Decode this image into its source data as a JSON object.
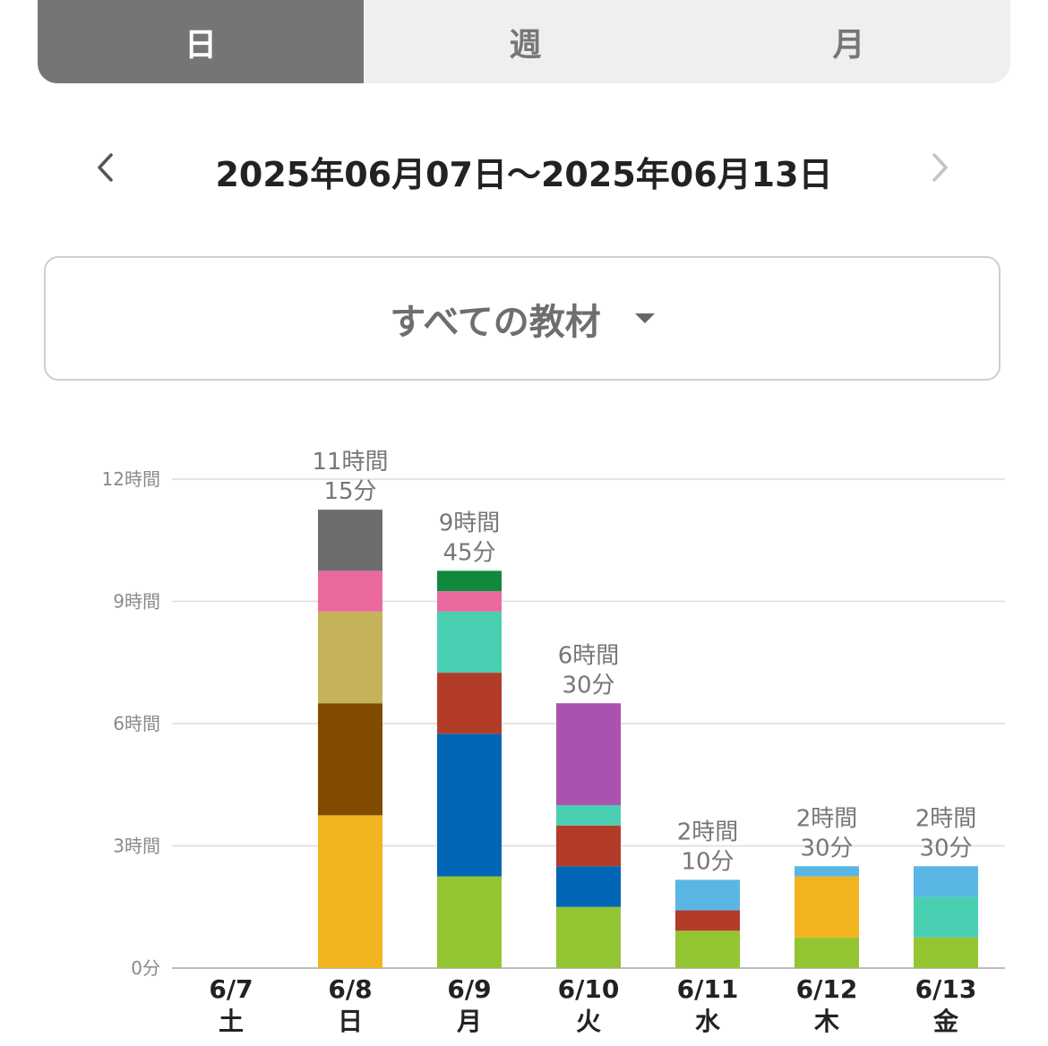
{
  "tabs": [
    {
      "label": "日",
      "active": true
    },
    {
      "label": "週",
      "active": false
    },
    {
      "label": "月",
      "active": false
    }
  ],
  "date_nav": {
    "range": "2025年06月07日〜2025年06月13日",
    "prev_icon": "chevron-left-icon",
    "next_icon": "chevron-right-icon"
  },
  "material_select": {
    "label": "すべての教材",
    "icon": "caret-down-icon"
  },
  "chart_data": {
    "type": "bar",
    "stacked": true,
    "unit": "minutes",
    "ylim": [
      0,
      720
    ],
    "yticks": [
      {
        "value": 0,
        "label": "0分"
      },
      {
        "value": 180,
        "label": "3時間"
      },
      {
        "value": 360,
        "label": "6時間"
      },
      {
        "value": 540,
        "label": "9時間"
      },
      {
        "value": 720,
        "label": "12時間"
      }
    ],
    "grid": true,
    "days": [
      {
        "date": "6/7",
        "weekday": "土",
        "total_label": "",
        "segments": []
      },
      {
        "date": "6/8",
        "weekday": "日",
        "total_label": [
          "11時間",
          "15分"
        ],
        "segments": [
          {
            "minutes": 225,
            "color": "#f2b41f"
          },
          {
            "minutes": 165,
            "color": "#814c00"
          },
          {
            "minutes": 135,
            "color": "#c4b35b"
          },
          {
            "minutes": 60,
            "color": "#ea6aa0"
          },
          {
            "minutes": 90,
            "color": "#6d6d6d"
          }
        ]
      },
      {
        "date": "6/9",
        "weekday": "月",
        "total_label": [
          "9時間",
          "45分"
        ],
        "segments": [
          {
            "minutes": 135,
            "color": "#93c532"
          },
          {
            "minutes": 210,
            "color": "#0066b5"
          },
          {
            "minutes": 90,
            "color": "#b33c28"
          },
          {
            "minutes": 90,
            "color": "#4acfb3"
          },
          {
            "minutes": 30,
            "color": "#ea6aa0"
          },
          {
            "minutes": 30,
            "color": "#0f8a3c"
          }
        ]
      },
      {
        "date": "6/10",
        "weekday": "火",
        "total_label": [
          "6時間",
          "30分"
        ],
        "segments": [
          {
            "minutes": 90,
            "color": "#93c532"
          },
          {
            "minutes": 60,
            "color": "#0066b5"
          },
          {
            "minutes": 60,
            "color": "#b33c28"
          },
          {
            "minutes": 30,
            "color": "#4acfb3"
          },
          {
            "minutes": 150,
            "color": "#aa52ae"
          }
        ]
      },
      {
        "date": "6/11",
        "weekday": "水",
        "total_label": [
          "2時間",
          "10分"
        ],
        "segments": [
          {
            "minutes": 55,
            "color": "#93c532"
          },
          {
            "minutes": 30,
            "color": "#b33c28"
          },
          {
            "minutes": 45,
            "color": "#5ab6e4"
          }
        ]
      },
      {
        "date": "6/12",
        "weekday": "木",
        "total_label": [
          "2時間",
          "30分"
        ],
        "segments": [
          {
            "minutes": 45,
            "color": "#93c532"
          },
          {
            "minutes": 90,
            "color": "#f2b41f"
          },
          {
            "minutes": 15,
            "color": "#5ab6e4"
          }
        ]
      },
      {
        "date": "6/13",
        "weekday": "金",
        "total_label": [
          "2時間",
          "30分"
        ],
        "segments": [
          {
            "minutes": 45,
            "color": "#93c532"
          },
          {
            "minutes": 60,
            "color": "#4acfb3"
          },
          {
            "minutes": 45,
            "color": "#5ab6e4"
          }
        ]
      }
    ]
  }
}
